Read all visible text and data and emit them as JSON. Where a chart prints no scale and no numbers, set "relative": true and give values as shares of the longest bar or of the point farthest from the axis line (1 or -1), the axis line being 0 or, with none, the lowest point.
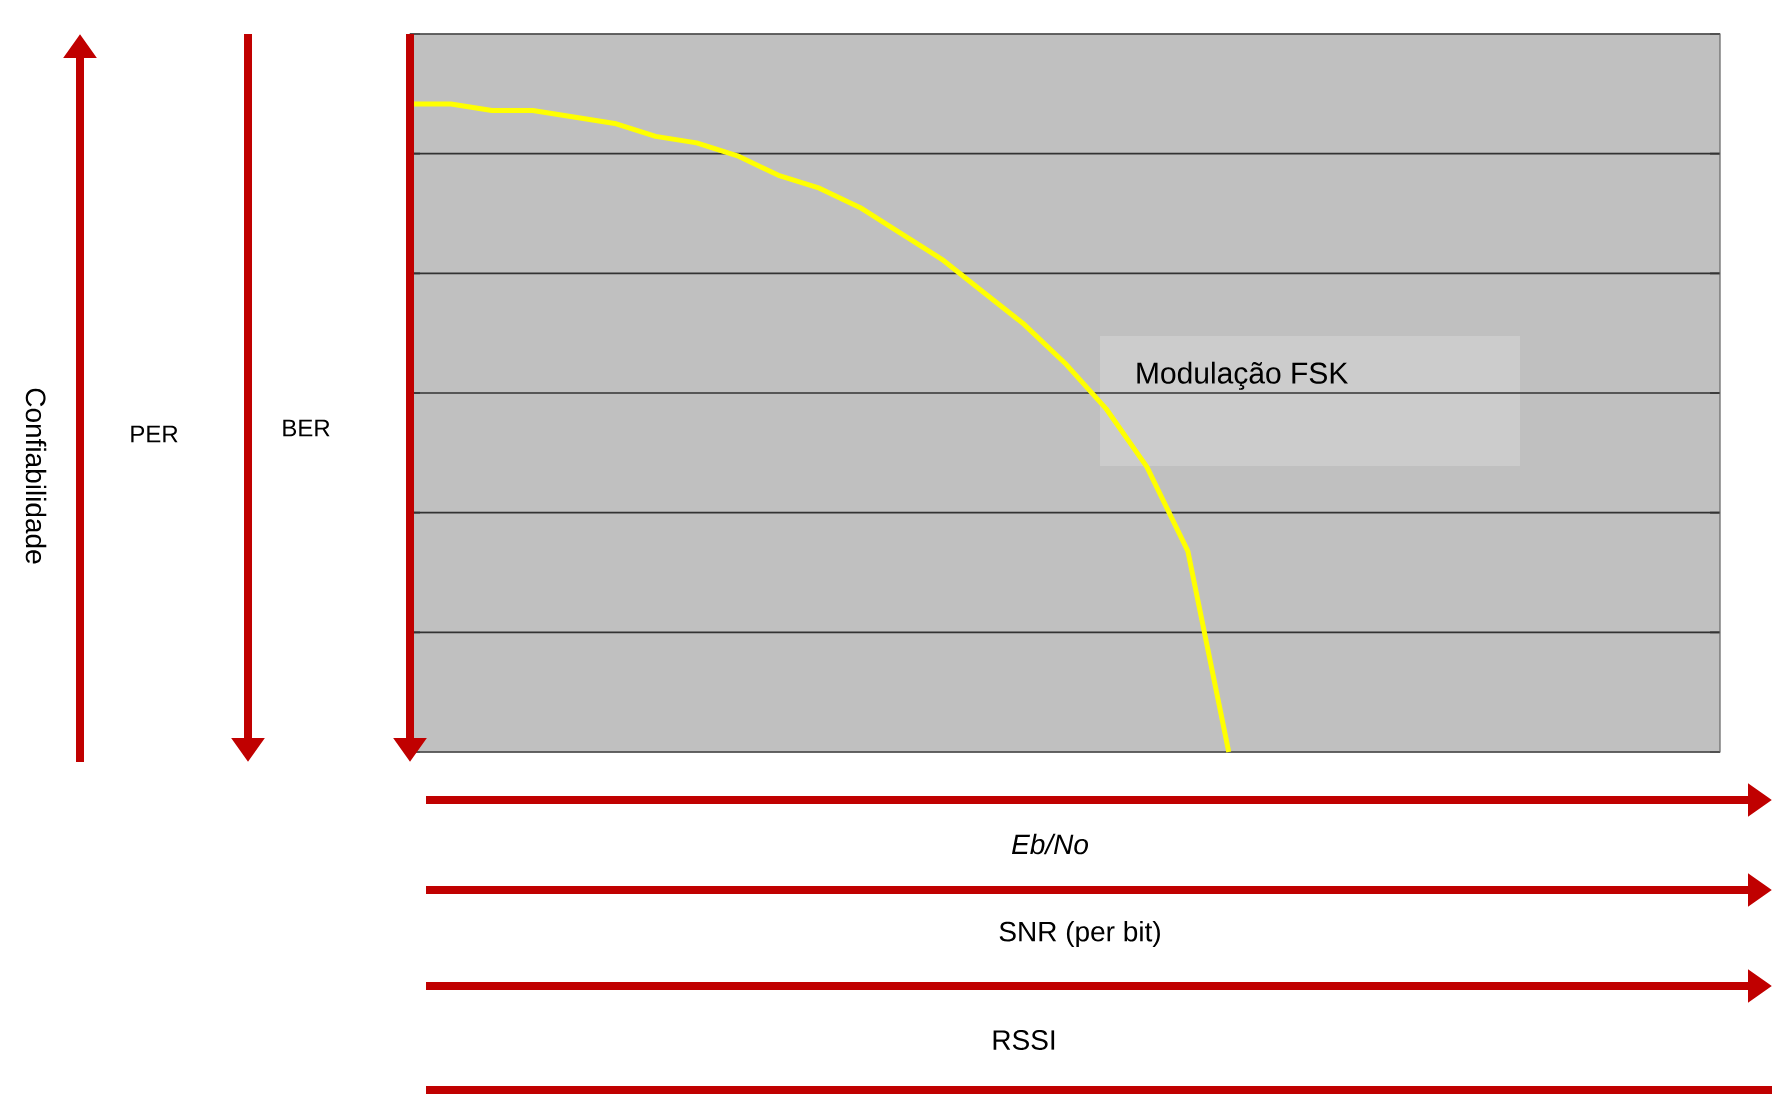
{
  "chart_data": {
    "type": "line",
    "relative": true,
    "xlabel": "Eb/No",
    "grid": "y",
    "categories": [
      null,
      null,
      null,
      null,
      null,
      null,
      null,
      null,
      null,
      null,
      null,
      null,
      null,
      null,
      null,
      null,
      null,
      null,
      null,
      null,
      null,
      null,
      null,
      null,
      null,
      null,
      null,
      null,
      null,
      null,
      null,
      null,
      null
    ],
    "series": [
      {
        "name": "Modulação FSK",
        "color": "#ffff00",
        "values": [
          1,
          1,
          0.99,
          0.99,
          0.98,
          0.97,
          0.95,
          0.94,
          0.92,
          0.89,
          0.87,
          0.84,
          0.8,
          0.76,
          0.71,
          0.66,
          0.6,
          0.53,
          0.44,
          0.31,
          0,
          null,
          null,
          null,
          null,
          null,
          null,
          null,
          null,
          null,
          null,
          null,
          null
        ]
      }
    ],
    "annotations": [
      "Confiabilidade",
      "PER",
      "BER",
      "SNR (per bit)",
      "RSSI"
    ]
  }
}
